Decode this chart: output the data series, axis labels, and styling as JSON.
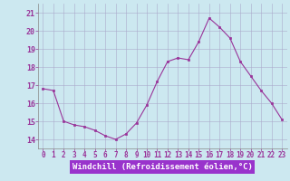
{
  "x": [
    0,
    1,
    2,
    3,
    4,
    5,
    6,
    7,
    8,
    9,
    10,
    11,
    12,
    13,
    14,
    15,
    16,
    17,
    18,
    19,
    20,
    21,
    22,
    23
  ],
  "y": [
    16.8,
    16.7,
    15.0,
    14.8,
    14.7,
    14.5,
    14.2,
    14.0,
    14.3,
    14.9,
    15.9,
    17.2,
    18.3,
    18.5,
    18.4,
    19.4,
    20.7,
    20.2,
    19.6,
    18.3,
    17.5,
    16.7,
    16.0,
    15.1
  ],
  "line_color": "#993399",
  "marker": "s",
  "marker_size": 2,
  "bg_color": "#cce8f0",
  "plot_bg_color": "#cce8f0",
  "grid_color": "#aaaacc",
  "xlabel": "Windchill (Refroidissement éolien,°C)",
  "xlabel_color": "#993399",
  "xlabel_bg": "#9933cc",
  "tick_color": "#993399",
  "ylim": [
    13.5,
    21.5
  ],
  "xlim": [
    -0.5,
    23.5
  ],
  "yticks": [
    14,
    15,
    16,
    17,
    18,
    19,
    20,
    21
  ],
  "xticks": [
    0,
    1,
    2,
    3,
    4,
    5,
    6,
    7,
    8,
    9,
    10,
    11,
    12,
    13,
    14,
    15,
    16,
    17,
    18,
    19,
    20,
    21,
    22,
    23
  ],
  "tick_fontsize": 5.5,
  "ylabel_fontsize": 6,
  "xlabel_fontsize": 6.5
}
